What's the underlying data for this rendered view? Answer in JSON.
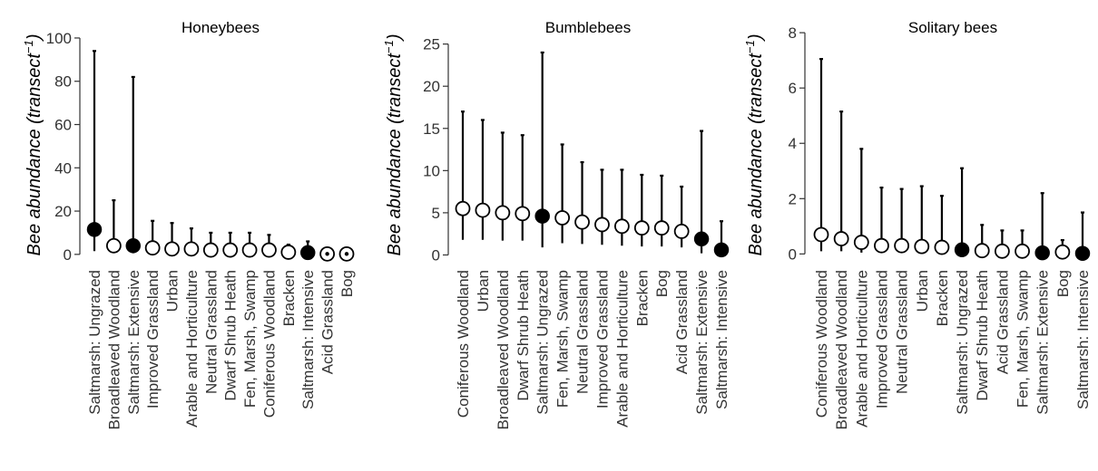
{
  "chart_data": [
    {
      "type": "scatter",
      "title": "Honeybees",
      "ylabel": "Bee abundance",
      "ylabel_unit": "transect",
      "ylabel_exp": "−1",
      "ylim": [
        -3,
        105
      ],
      "yticks": [
        0,
        20,
        40,
        60,
        80,
        100
      ],
      "categories": [
        "Saltmarsh: Ungrazed",
        "Broadleaved Woodland",
        "Saltmarsh: Extensive",
        "Improved Grassland",
        "Urban",
        "Arable and Horticulture",
        "Neutral Grassland",
        "Dwarf Shrub Heath",
        "Fen, Marsh, Swamp",
        "Coniferous Woodland",
        "Bracken",
        "Saltmarsh: Intensive",
        "Acid Grassland",
        "Bog"
      ],
      "values": [
        11.5,
        4,
        4,
        3,
        2.5,
        2.5,
        2,
        2,
        2,
        2,
        1,
        0.8,
        0.2,
        0.2
      ],
      "upper": [
        94,
        25,
        82,
        15.5,
        14.5,
        12,
        10,
        10,
        10,
        9,
        4.5,
        6,
        0.5,
        0.5
      ],
      "lower": [
        1.5,
        0.5,
        0.5,
        0.5,
        0.5,
        0.5,
        0.5,
        0.5,
        0.5,
        0.5,
        0.2,
        0.1,
        0,
        0
      ],
      "filled": [
        true,
        false,
        true,
        false,
        false,
        false,
        false,
        false,
        false,
        false,
        false,
        true,
        "dot",
        "dot"
      ]
    },
    {
      "type": "scatter",
      "title": "Bumblebees",
      "ylabel": "Bee abundance",
      "ylabel_unit": "transect",
      "ylabel_exp": "−1",
      "ylim": [
        -0.7,
        27
      ],
      "yticks": [
        0,
        5,
        10,
        15,
        20,
        25
      ],
      "categories": [
        "Coniferous Woodland",
        "Urban",
        "Broadleaved Woodland",
        "Dwarf Shrub Heath",
        "Saltmarsh: Ungrazed",
        "Fen, Marsh, Swamp",
        "Neutral Grassland",
        "Improved Grassland",
        "Arable and Horticulture",
        "Bracken",
        "Bog",
        "Acid Grassland",
        "Saltmarsh: Extensive",
        "Saltmarsh: Intensive"
      ],
      "values": [
        5.5,
        5.3,
        5,
        4.9,
        4.6,
        4.4,
        3.9,
        3.6,
        3.4,
        3.2,
        3.2,
        2.8,
        1.9,
        0.6
      ],
      "upper": [
        17,
        16,
        14.5,
        14.2,
        24,
        13.1,
        11,
        10.1,
        10.1,
        9.5,
        9.4,
        8.1,
        14.7,
        4
      ],
      "lower": [
        1.8,
        1.8,
        1.7,
        1.7,
        0.9,
        1.4,
        1.3,
        1.2,
        1.1,
        1,
        1,
        0.9,
        0.2,
        0
      ],
      "filled": [
        false,
        false,
        false,
        false,
        true,
        false,
        false,
        false,
        false,
        false,
        false,
        false,
        true,
        true
      ]
    },
    {
      "type": "scatter",
      "title": "Solitary bees",
      "ylabel": "Bee abundance",
      "ylabel_unit": "transect",
      "ylabel_exp": "−1",
      "ylim": [
        -0.25,
        8.2
      ],
      "yticks": [
        0,
        2,
        4,
        6,
        8
      ],
      "categories": [
        "Coniferous Woodland",
        "Broadleaved Woodland",
        "Arable and Horticulture",
        "Improved Grassland",
        "Neutral Grassland",
        "Urban",
        "Bracken",
        "Saltmarsh: Ungrazed",
        "Dwarf Shrub Heath",
        "Acid Grassland",
        "Fen, Marsh, Swamp",
        "Saltmarsh: Extensive",
        "Bog",
        "Saltmarsh: Intensive"
      ],
      "values": [
        0.7,
        0.55,
        0.42,
        0.3,
        0.3,
        0.27,
        0.24,
        0.15,
        0.12,
        0.1,
        0.1,
        0.04,
        0.07,
        0.02
      ],
      "upper": [
        7.05,
        5.15,
        3.8,
        2.4,
        2.35,
        2.45,
        2.1,
        3.1,
        1.05,
        0.85,
        0.85,
        2.2,
        0.5,
        1.5
      ],
      "lower": [
        0.1,
        0.1,
        0.05,
        0.05,
        0.05,
        0.05,
        0.05,
        0,
        0,
        0,
        0,
        0,
        0,
        0
      ],
      "filled": [
        false,
        false,
        false,
        false,
        false,
        false,
        false,
        true,
        false,
        false,
        false,
        true,
        false,
        true
      ]
    }
  ]
}
